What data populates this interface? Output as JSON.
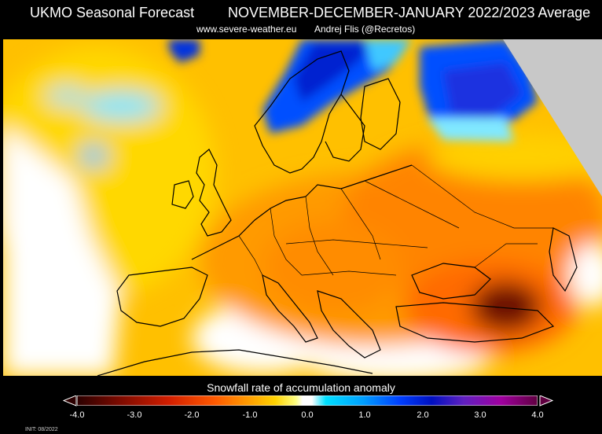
{
  "title": {
    "left": "UKMO Seasonal Forecast",
    "right": "NOVEMBER-DECEMBER-JANUARY 2022/2023 Average"
  },
  "subtitle": {
    "site": "www.severe-weather.eu",
    "author": "Andrej Flis (@Recretos)"
  },
  "legend": {
    "title": "Snowfall rate of accumulation anomaly",
    "ticks": [
      "-4.0",
      "-3.0",
      "-2.0",
      "-1.0",
      "0.0",
      "1.0",
      "2.0",
      "3.0",
      "4.0"
    ],
    "colors": [
      "#2b0000",
      "#7a0a00",
      "#d21e00",
      "#ff5a00",
      "#ff9a00",
      "#ffd200",
      "#ffff80",
      "#ffffff",
      "#ffffff",
      "#00e0ff",
      "#00a0ff",
      "#0040ff",
      "#0010c0",
      "#6020c0",
      "#a000a0",
      "#600040"
    ]
  },
  "init": "INIT: 08/2022",
  "map": {
    "region": "Europe",
    "no_data_color": "#c8c8c8",
    "coast_color": "#000000"
  }
}
